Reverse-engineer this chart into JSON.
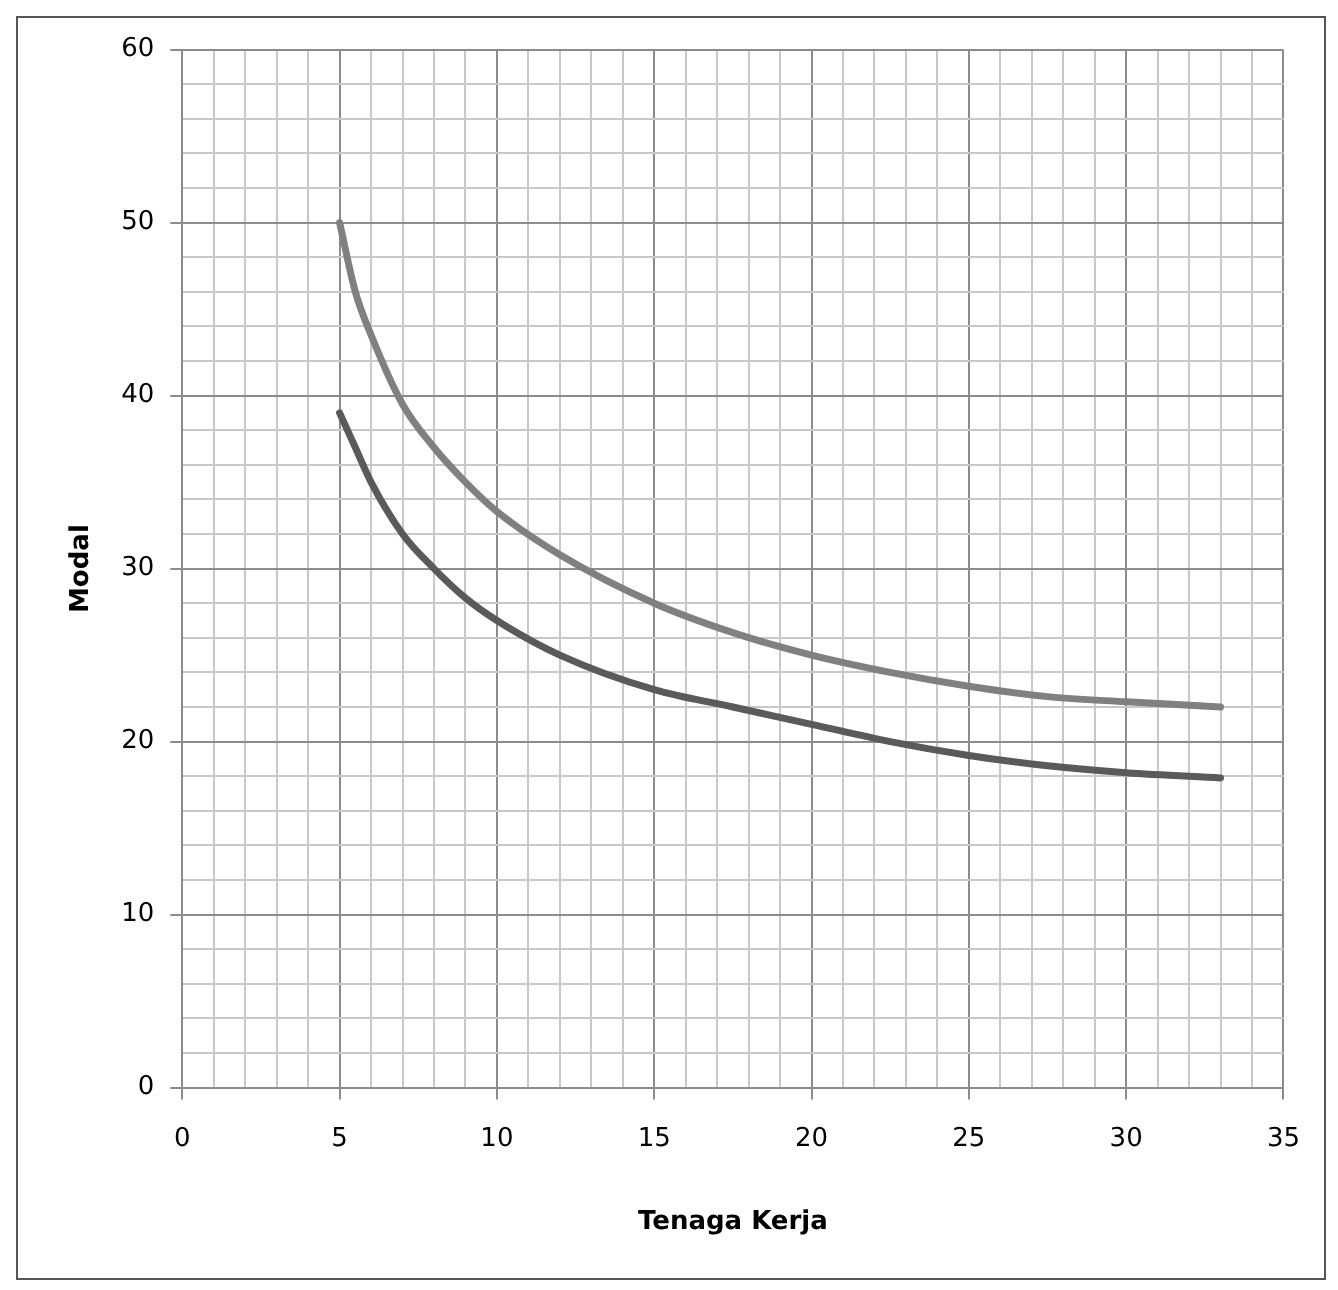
{
  "chart_data": {
    "type": "line",
    "xlabel": "Tenaga Kerja",
    "ylabel": "Modal",
    "xlim": [
      0,
      35
    ],
    "ylim": [
      0,
      60
    ],
    "xticks": [
      0,
      {
        "value": 1,
        "label": null
      },
      {
        "value": 2,
        "label": null
      },
      {
        "value": 3,
        "label": null
      },
      {
        "value": 4,
        "label": null
      },
      5,
      {
        "value": 6,
        "label": null
      },
      {
        "value": 7,
        "label": null
      },
      {
        "value": 8,
        "label": null
      },
      {
        "value": 9,
        "label": null
      },
      10,
      {
        "value": 11,
        "label": null
      },
      {
        "value": 12,
        "label": null
      },
      {
        "value": 13,
        "label": null
      },
      {
        "value": 14,
        "label": null
      },
      15,
      {
        "value": 16,
        "label": null
      },
      {
        "value": 17,
        "label": null
      },
      {
        "value": 18,
        "label": null
      },
      {
        "value": 19,
        "label": null
      },
      20,
      {
        "value": 21,
        "label": null
      },
      {
        "value": 22,
        "label": null
      },
      {
        "value": 23,
        "label": null
      },
      {
        "value": 24,
        "label": null
      },
      25,
      {
        "value": 26,
        "label": null
      },
      {
        "value": 27,
        "label": null
      },
      {
        "value": 28,
        "label": null
      },
      {
        "value": 29,
        "label": null
      },
      30,
      {
        "value": 31,
        "label": null
      },
      {
        "value": 32,
        "label": null
      },
      {
        "value": 33,
        "label": null
      },
      {
        "value": 34,
        "label": null
      },
      35
    ],
    "yticks": [
      0,
      {
        "value": 2,
        "label": null
      },
      {
        "value": 4,
        "label": null
      },
      {
        "value": 6,
        "label": null
      },
      {
        "value": 8,
        "label": null
      },
      10,
      {
        "value": 12,
        "label": null
      },
      {
        "value": 14,
        "label": null
      },
      {
        "value": 16,
        "label": null
      },
      {
        "value": 18,
        "label": null
      },
      20,
      {
        "value": 22,
        "label": null
      },
      {
        "value": 24,
        "label": null
      },
      {
        "value": 26,
        "label": null
      },
      {
        "value": 28,
        "label": null
      },
      30,
      {
        "value": 32,
        "label": null
      },
      {
        "value": 34,
        "label": null
      },
      {
        "value": 36,
        "label": null
      },
      {
        "value": 38,
        "label": null
      },
      40,
      {
        "value": 42,
        "label": null
      },
      {
        "value": 44,
        "label": null
      },
      {
        "value": 46,
        "label": null
      },
      {
        "value": 48,
        "label": null
      },
      50,
      {
        "value": 52,
        "label": null
      },
      {
        "value": 54,
        "label": null
      },
      {
        "value": 56,
        "label": null
      },
      {
        "value": 58,
        "label": null
      },
      60
    ],
    "grid": true,
    "legend": false,
    "marker": "none",
    "line_style": "solid",
    "series": [
      {
        "color": "#808080",
        "x": [
          5,
          5.5,
          6,
          7,
          8,
          9,
          10,
          12,
          15,
          17.5,
          20,
          22.5,
          25,
          27.5,
          30,
          33
        ],
        "values": [
          50,
          46,
          43.5,
          39.5,
          37,
          35,
          33.3,
          30.8,
          28,
          26.3,
          25,
          24,
          23.2,
          22.6,
          22.3,
          22
        ]
      },
      {
        "color": "#5a5a5a",
        "x": [
          5,
          5.5,
          6,
          7,
          8,
          9,
          10,
          12,
          15,
          17.5,
          20,
          22.5,
          25,
          27.5,
          30,
          33
        ],
        "values": [
          39,
          37,
          35,
          32,
          30,
          28.3,
          27,
          25,
          23,
          22,
          21,
          20,
          19.2,
          18.6,
          18.2,
          17.9
        ]
      }
    ]
  }
}
